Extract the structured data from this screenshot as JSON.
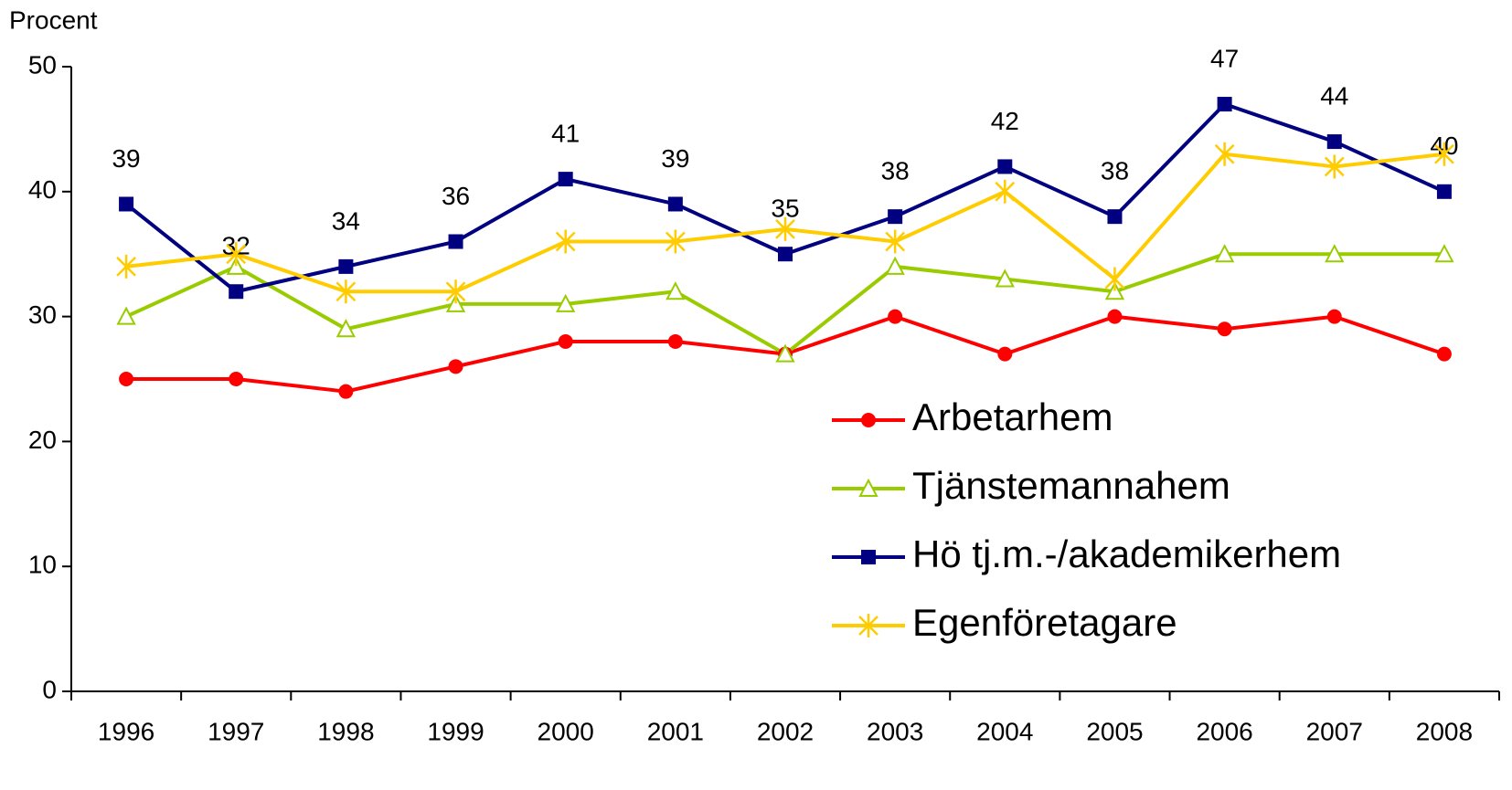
{
  "chart_data": {
    "type": "line",
    "y_label": "Procent",
    "categories": [
      "1996",
      "1997",
      "1998",
      "1999",
      "2000",
      "2001",
      "2002",
      "2003",
      "2004",
      "2005",
      "2006",
      "2007",
      "2008"
    ],
    "series": [
      {
        "name": "Arbetarhem",
        "color": "#ff0000",
        "marker": "circle",
        "values": [
          25,
          25,
          24,
          26,
          28,
          28,
          27,
          30,
          27,
          30,
          29,
          30,
          27
        ]
      },
      {
        "name": "Tjänstemannahem",
        "color": "#99cc00",
        "marker": "triangle",
        "values": [
          30,
          34,
          29,
          31,
          31,
          32,
          27,
          34,
          33,
          32,
          35,
          35,
          35
        ]
      },
      {
        "name": "Hö tj.m.-/akademikerhem",
        "color": "#000080",
        "marker": "square",
        "data_labels": true,
        "values": [
          39,
          32,
          34,
          36,
          41,
          39,
          35,
          38,
          42,
          38,
          47,
          44,
          40
        ]
      },
      {
        "name": "Egenföretagare",
        "color": "#ffcc00",
        "marker": "star",
        "values": [
          34,
          35,
          32,
          32,
          36,
          36,
          37,
          36,
          40,
          33,
          43,
          42,
          43
        ]
      }
    ],
    "ylim": [
      0,
      50
    ],
    "yticks": [
      0,
      10,
      20,
      30,
      40,
      50
    ],
    "grid": false,
    "legend": "right"
  }
}
